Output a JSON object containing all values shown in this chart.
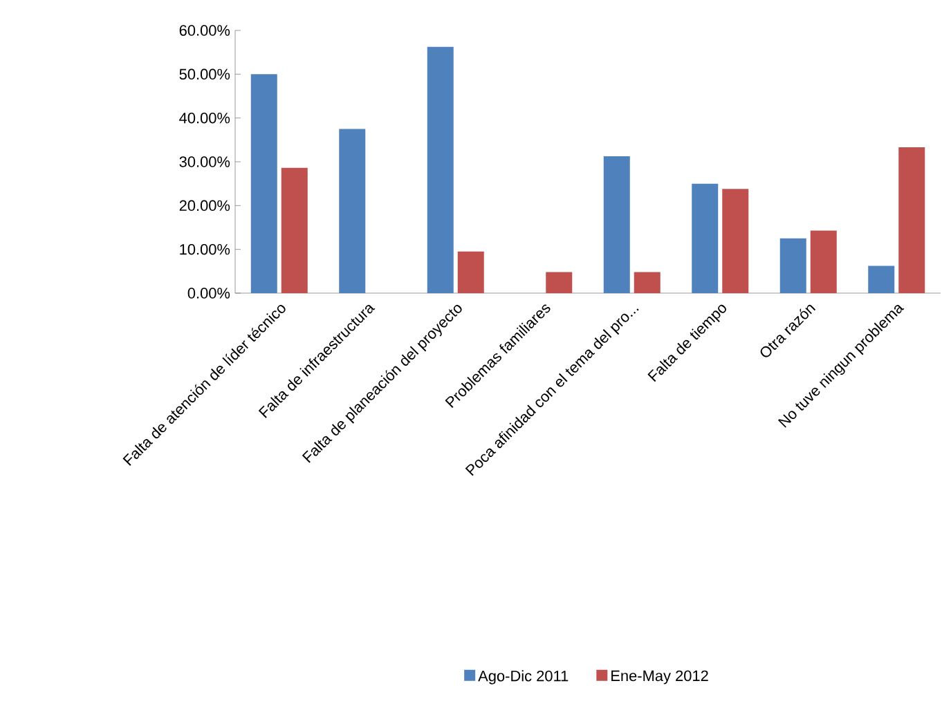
{
  "chart_data": {
    "type": "bar",
    "categories": [
      "Falta de atención de líder técnico",
      "Falta de infraestructura",
      "Falta de planeación del proyecto",
      "Problemas familiares",
      "Poca afinidad con el tema del pro...",
      "Falta de tiempo",
      "Otra razón",
      "No tuve ningun problema"
    ],
    "series": [
      {
        "name": "Ago-Dic 2011",
        "color": "#4f81bd",
        "values": [
          50.0,
          37.5,
          56.25,
          0,
          31.25,
          25.0,
          12.5,
          6.25
        ]
      },
      {
        "name": "Ene-May 2012",
        "color": "#c0504d",
        "values": [
          28.6,
          0,
          9.5,
          4.8,
          4.8,
          23.8,
          14.3,
          33.3
        ]
      }
    ],
    "ylim": [
      0,
      60
    ],
    "yticks": [
      {
        "value": 0,
        "label": "0.00%"
      },
      {
        "value": 10,
        "label": "10.00%"
      },
      {
        "value": 20,
        "label": "20.00%"
      },
      {
        "value": 30,
        "label": "30.00%"
      },
      {
        "value": 40,
        "label": "40.00%"
      },
      {
        "value": 50,
        "label": "50.00%"
      },
      {
        "value": 60,
        "label": "60.00%"
      }
    ],
    "legend": "bottom"
  }
}
